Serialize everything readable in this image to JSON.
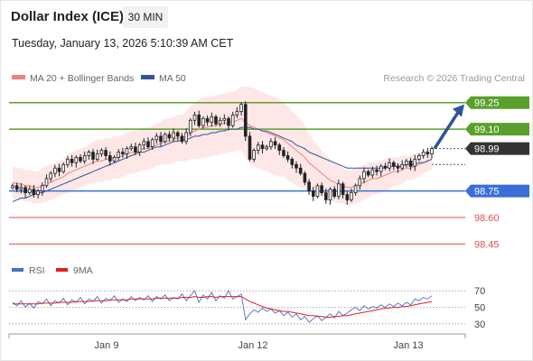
{
  "header": {
    "title": "Dollar Index (ICE)",
    "timeframe": "30 MIN",
    "datetime": "Tuesday, January 13, 2026 5:10:39 AM CET"
  },
  "legend": {
    "items": [
      {
        "label": "MA 20 + Bollinger Bands",
        "color": "#f08080"
      },
      {
        "label": "MA 50",
        "color": "#2f5597"
      }
    ],
    "credit": "Research © 2026 Trading Central"
  },
  "rsi_legend": {
    "items": [
      {
        "label": "RSI",
        "color": "#4472c4"
      },
      {
        "label": "9MA",
        "color": "#e02020"
      }
    ]
  },
  "chart_data": [
    {
      "type": "candlestick",
      "title": "Dollar Index (ICE)",
      "x_tick_labels": [
        "Jan 9",
        "Jan 12",
        "Jan 13"
      ],
      "levels": [
        {
          "value": 99.25,
          "label": "99.25",
          "style": "resistance",
          "color": "#5aa02c"
        },
        {
          "value": 99.1,
          "label": "99.10",
          "style": "resistance",
          "color": "#5aa02c"
        },
        {
          "value": 98.99,
          "label": "98.99",
          "style": "last",
          "color": "#333333"
        },
        {
          "value": 98.75,
          "label": "98.75",
          "style": "pivot",
          "color": "#3a6fd8"
        },
        {
          "value": 98.6,
          "label": "98.60",
          "style": "support",
          "color": "#e05050"
        },
        {
          "value": 98.45,
          "label": "98.45",
          "style": "support",
          "color": "#e05050"
        }
      ],
      "price_range": [
        98.35,
        99.32
      ],
      "close_series": [
        98.78,
        98.76,
        98.77,
        98.74,
        98.76,
        98.73,
        98.75,
        98.78,
        98.82,
        98.85,
        98.88,
        98.86,
        98.9,
        98.93,
        98.91,
        98.94,
        98.92,
        98.95,
        98.97,
        98.93,
        98.96,
        98.98,
        98.95,
        98.92,
        98.94,
        98.97,
        98.96,
        98.99,
        99.0,
        98.97,
        99.01,
        99.03,
        99.0,
        99.04,
        99.06,
        99.03,
        99.07,
        99.05,
        99.08,
        99.06,
        99.03,
        99.08,
        99.15,
        99.18,
        99.12,
        99.16,
        99.14,
        99.17,
        99.13,
        99.15,
        99.16,
        99.12,
        99.18,
        99.2,
        99.24,
        99.06,
        98.93,
        98.98,
        99.01,
        98.99,
        99.0,
        99.03,
        99.01,
        98.98,
        98.95,
        98.93,
        98.9,
        98.88,
        98.85,
        98.8,
        98.75,
        98.72,
        98.78,
        98.74,
        98.7,
        98.76,
        98.72,
        98.79,
        98.73,
        98.7,
        98.74,
        98.78,
        98.82,
        98.86,
        98.84,
        98.87,
        98.86,
        98.89,
        98.88,
        98.91,
        98.89,
        98.88,
        98.9,
        98.92,
        98.89,
        98.93,
        98.95,
        98.97,
        98.96,
        98.99
      ],
      "ma20_series": [
        98.8,
        98.79,
        98.79,
        98.78,
        98.78,
        98.77,
        98.77,
        98.78,
        98.79,
        98.8,
        98.81,
        98.82,
        98.83,
        98.85,
        98.86,
        98.87,
        98.88,
        98.89,
        98.9,
        98.91,
        98.92,
        98.92,
        98.93,
        98.93,
        98.94,
        98.94,
        98.95,
        98.96,
        98.97,
        98.97,
        98.98,
        98.99,
        98.99,
        99.0,
        99.01,
        99.02,
        99.03,
        99.03,
        99.04,
        99.05,
        99.05,
        99.06,
        99.08,
        99.09,
        99.1,
        99.11,
        99.11,
        99.12,
        99.12,
        99.13,
        99.13,
        99.14,
        99.14,
        99.15,
        99.16,
        99.14,
        99.12,
        99.11,
        99.1,
        99.09,
        99.08,
        99.07,
        99.06,
        99.05,
        99.04,
        99.02,
        99.0,
        98.98,
        98.96,
        98.94,
        98.91,
        98.89,
        98.87,
        98.85,
        98.83,
        98.81,
        98.8,
        98.79,
        98.78,
        98.77,
        98.77,
        98.78,
        98.79,
        98.8,
        98.81,
        98.82,
        98.82,
        98.83,
        98.84,
        98.85,
        98.86,
        98.86,
        98.87,
        98.88,
        98.88,
        98.89,
        98.9,
        98.91,
        98.92,
        98.93
      ],
      "ma50_series": [
        98.69,
        98.7,
        98.71,
        98.71,
        98.72,
        98.73,
        98.74,
        98.74,
        98.75,
        98.76,
        98.77,
        98.78,
        98.79,
        98.8,
        98.81,
        98.82,
        98.83,
        98.84,
        98.85,
        98.86,
        98.87,
        98.88,
        98.89,
        98.9,
        98.91,
        98.92,
        98.93,
        98.94,
        98.95,
        98.96,
        98.97,
        98.97,
        98.98,
        98.99,
        99.0,
        99.0,
        99.01,
        99.02,
        99.03,
        99.03,
        99.04,
        99.04,
        99.05,
        99.06,
        99.06,
        99.07,
        99.07,
        99.08,
        99.08,
        99.09,
        99.09,
        99.1,
        99.1,
        99.1,
        99.11,
        99.11,
        99.11,
        99.1,
        99.1,
        99.09,
        99.09,
        99.08,
        99.07,
        99.06,
        99.05,
        99.04,
        99.03,
        99.01,
        99.0,
        98.99,
        98.97,
        98.96,
        98.95,
        98.94,
        98.93,
        98.92,
        98.91,
        98.9,
        98.89,
        98.88,
        98.88,
        98.88,
        98.88,
        98.88,
        98.88,
        98.88,
        98.88,
        98.88,
        98.88,
        98.89,
        98.89,
        98.89,
        98.89,
        98.9,
        98.9,
        98.9,
        98.91,
        98.91,
        98.92,
        98.93
      ],
      "bollinger_width": [
        0.09,
        0.09,
        0.09,
        0.09,
        0.09,
        0.09,
        0.09,
        0.1,
        0.1,
        0.1,
        0.1,
        0.1,
        0.1,
        0.11,
        0.11,
        0.11,
        0.11,
        0.11,
        0.11,
        0.12,
        0.12,
        0.12,
        0.12,
        0.12,
        0.12,
        0.12,
        0.12,
        0.12,
        0.12,
        0.12,
        0.12,
        0.12,
        0.12,
        0.12,
        0.12,
        0.12,
        0.13,
        0.13,
        0.13,
        0.13,
        0.13,
        0.14,
        0.15,
        0.16,
        0.17,
        0.17,
        0.17,
        0.17,
        0.17,
        0.17,
        0.17,
        0.17,
        0.17,
        0.17,
        0.18,
        0.2,
        0.22,
        0.22,
        0.22,
        0.22,
        0.22,
        0.22,
        0.22,
        0.22,
        0.21,
        0.21,
        0.2,
        0.2,
        0.19,
        0.18,
        0.16,
        0.15,
        0.14,
        0.13,
        0.12,
        0.12,
        0.11,
        0.11,
        0.1,
        0.1,
        0.1,
        0.1,
        0.1,
        0.1,
        0.1,
        0.09,
        0.09,
        0.09,
        0.09,
        0.09,
        0.08,
        0.08,
        0.08,
        0.07,
        0.07,
        0.07,
        0.07,
        0.06,
        0.06,
        0.06
      ]
    },
    {
      "type": "line",
      "title": "RSI",
      "y_tick_labels": [
        "70",
        "50",
        "30"
      ],
      "ylim": [
        20,
        80
      ],
      "series": [
        {
          "name": "RSI",
          "values": [
            56,
            52,
            58,
            50,
            55,
            49,
            57,
            54,
            60,
            52,
            58,
            55,
            61,
            53,
            59,
            56,
            62,
            54,
            60,
            57,
            63,
            55,
            61,
            58,
            64,
            56,
            60,
            57,
            63,
            58,
            62,
            59,
            64,
            57,
            63,
            60,
            65,
            58,
            62,
            60,
            66,
            58,
            64,
            70,
            56,
            65,
            60,
            68,
            58,
            64,
            61,
            70,
            60,
            63,
            66,
            35,
            42,
            47,
            44,
            49,
            45,
            48,
            43,
            46,
            40,
            44,
            38,
            42,
            35,
            39,
            32,
            36,
            40,
            34,
            38,
            42,
            37,
            45,
            40,
            43,
            47,
            50,
            46,
            52,
            48,
            51,
            49,
            53,
            50,
            54,
            51,
            55,
            52,
            56,
            53,
            60,
            58,
            62,
            60,
            64
          ]
        },
        {
          "name": "9MA",
          "values": [
            54,
            54,
            54,
            54,
            54,
            54,
            54,
            55,
            55,
            55,
            55,
            56,
            56,
            56,
            56,
            57,
            57,
            57,
            57,
            58,
            58,
            58,
            58,
            59,
            59,
            59,
            59,
            59,
            60,
            60,
            60,
            60,
            60,
            60,
            61,
            61,
            61,
            61,
            61,
            61,
            62,
            62,
            62,
            63,
            62,
            62,
            63,
            63,
            62,
            63,
            63,
            63,
            63,
            63,
            63,
            60,
            57,
            55,
            53,
            51,
            49,
            48,
            47,
            46,
            45,
            45,
            44,
            43,
            42,
            41,
            40,
            40,
            39,
            39,
            38,
            38,
            39,
            39,
            40,
            40,
            41,
            42,
            43,
            44,
            45,
            46,
            47,
            48,
            49,
            49,
            50,
            50,
            51,
            51,
            52,
            53,
            54,
            55,
            56,
            57
          ]
        }
      ]
    }
  ]
}
